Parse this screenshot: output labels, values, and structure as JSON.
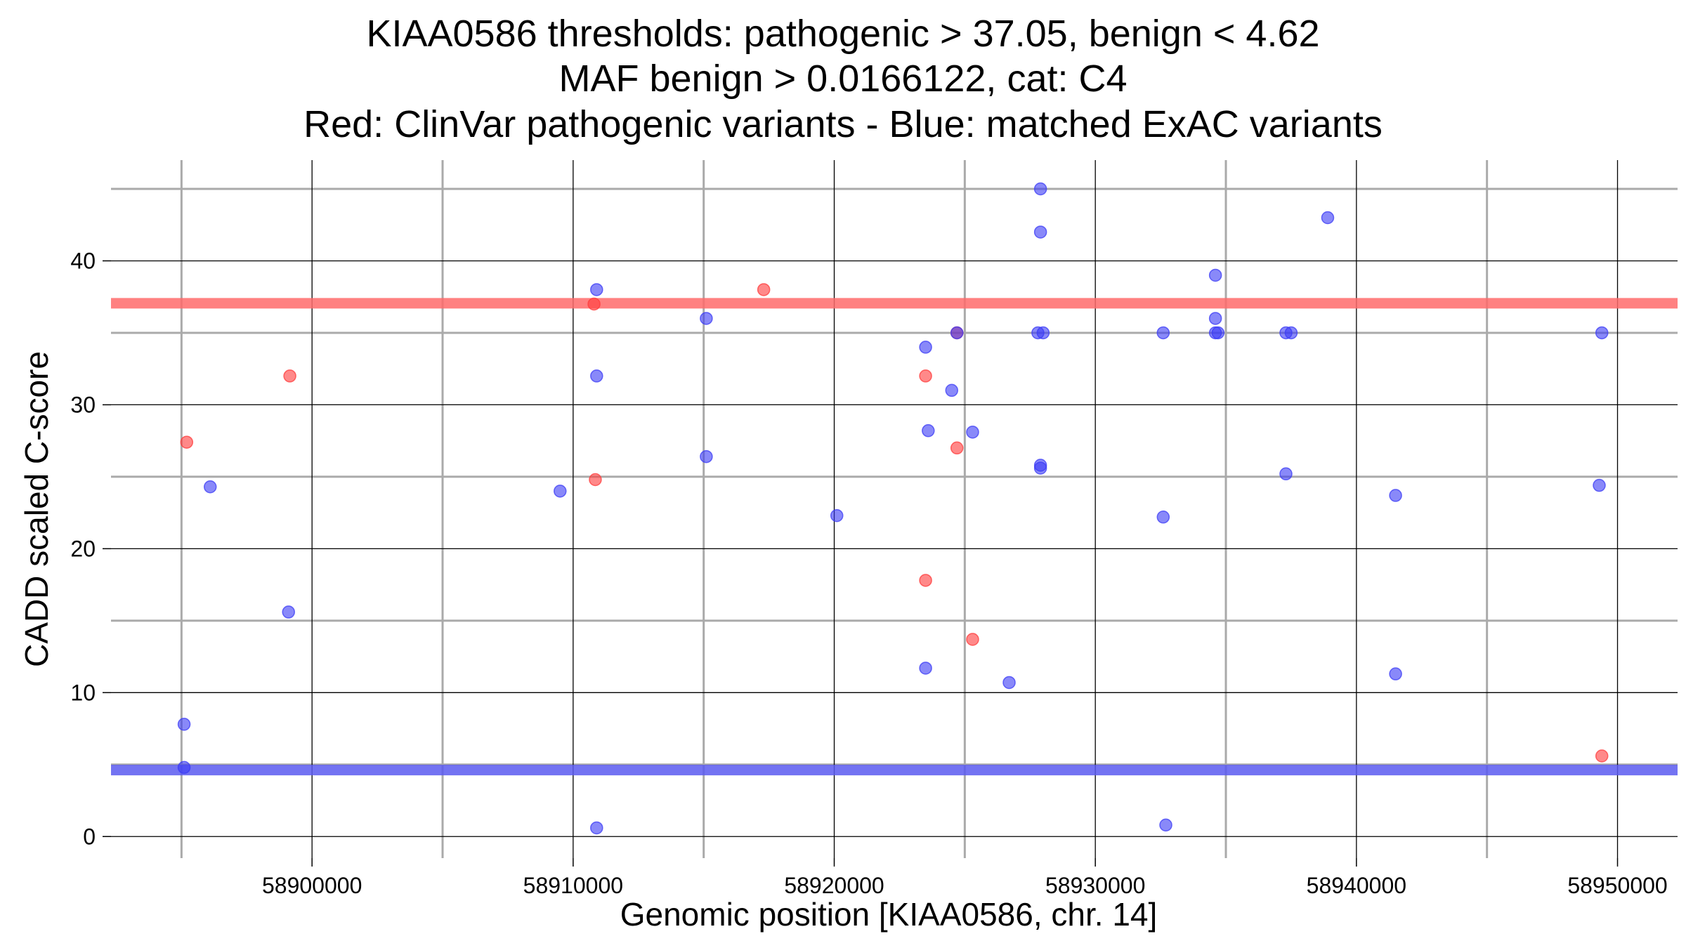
{
  "chart_data": {
    "type": "scatter",
    "title_lines": [
      "KIAA0586 thresholds: pathogenic > 37.05, benign < 4.62",
      "MAF benign > 0.0166122, cat: C4",
      "Red: ClinVar pathogenic variants - Blue: matched ExAC variants"
    ],
    "xlabel": "Genomic position [KIAA0586, chr. 14]",
    "ylabel": "CADD scaled C-score",
    "xlim": [
      58892300,
      58952300
    ],
    "ylim": [
      -1.5,
      47
    ],
    "x_major_ticks": [
      58900000,
      58910000,
      58920000,
      58930000,
      58940000,
      58950000
    ],
    "x_tick_labels": [
      "58900000",
      "58910000",
      "58920000",
      "58930000",
      "58940000",
      "58950000"
    ],
    "x_minor_ticks": [
      58895000,
      58905000,
      58915000,
      58925000,
      58935000,
      58945000
    ],
    "y_major_ticks": [
      0,
      10,
      20,
      30,
      40
    ],
    "y_tick_labels": [
      "0",
      "10",
      "20",
      "30",
      "40"
    ],
    "y_minor_ticks": [
      5,
      15,
      25,
      35,
      45
    ],
    "grid": true,
    "thresholds": [
      {
        "name": "pathogenic",
        "value": 37.05,
        "color": "#ff6b6b"
      },
      {
        "name": "benign",
        "value": 4.62,
        "color": "#5b5bf0"
      }
    ],
    "series": [
      {
        "name": "ClinVar pathogenic variants",
        "color": "#ff3b3b",
        "points": [
          {
            "x": 58895200,
            "y": 27.4
          },
          {
            "x": 58899150,
            "y": 32.0
          },
          {
            "x": 58910800,
            "y": 37.0
          },
          {
            "x": 58910850,
            "y": 24.8
          },
          {
            "x": 58917300,
            "y": 38.0
          },
          {
            "x": 58923500,
            "y": 32.0
          },
          {
            "x": 58923500,
            "y": 17.8
          },
          {
            "x": 58924700,
            "y": 35.0
          },
          {
            "x": 58924700,
            "y": 27.0
          },
          {
            "x": 58925300,
            "y": 13.7
          },
          {
            "x": 58949400,
            "y": 5.6
          }
        ]
      },
      {
        "name": "matched ExAC variants",
        "color": "#3b3bf5",
        "points": [
          {
            "x": 58895100,
            "y": 7.8
          },
          {
            "x": 58895100,
            "y": 4.8
          },
          {
            "x": 58896100,
            "y": 24.3
          },
          {
            "x": 58899100,
            "y": 15.6
          },
          {
            "x": 58909500,
            "y": 24.0
          },
          {
            "x": 58910900,
            "y": 38.0
          },
          {
            "x": 58910900,
            "y": 32.0
          },
          {
            "x": 58910900,
            "y": 0.6
          },
          {
            "x": 58915100,
            "y": 36.0
          },
          {
            "x": 58915100,
            "y": 26.4
          },
          {
            "x": 58920100,
            "y": 22.3
          },
          {
            "x": 58923500,
            "y": 34.0
          },
          {
            "x": 58923600,
            "y": 28.2
          },
          {
            "x": 58923500,
            "y": 11.7
          },
          {
            "x": 58924500,
            "y": 31.0
          },
          {
            "x": 58924700,
            "y": 35.0
          },
          {
            "x": 58925300,
            "y": 28.1
          },
          {
            "x": 58926700,
            "y": 10.7
          },
          {
            "x": 58927900,
            "y": 45.0
          },
          {
            "x": 58927900,
            "y": 42.0
          },
          {
            "x": 58927800,
            "y": 35.0
          },
          {
            "x": 58928000,
            "y": 35.0
          },
          {
            "x": 58927900,
            "y": 25.8
          },
          {
            "x": 58927900,
            "y": 25.6
          },
          {
            "x": 58932600,
            "y": 35.0
          },
          {
            "x": 58932600,
            "y": 22.2
          },
          {
            "x": 58932700,
            "y": 0.8
          },
          {
            "x": 58934600,
            "y": 39.0
          },
          {
            "x": 58934600,
            "y": 36.0
          },
          {
            "x": 58934600,
            "y": 35.0
          },
          {
            "x": 58934700,
            "y": 35.0
          },
          {
            "x": 58937300,
            "y": 35.0
          },
          {
            "x": 58937500,
            "y": 35.0
          },
          {
            "x": 58937300,
            "y": 25.2
          },
          {
            "x": 58938900,
            "y": 43.0
          },
          {
            "x": 58941500,
            "y": 23.7
          },
          {
            "x": 58941500,
            "y": 11.3
          },
          {
            "x": 58949300,
            "y": 24.4
          },
          {
            "x": 58949400,
            "y": 35.0
          }
        ]
      }
    ]
  }
}
